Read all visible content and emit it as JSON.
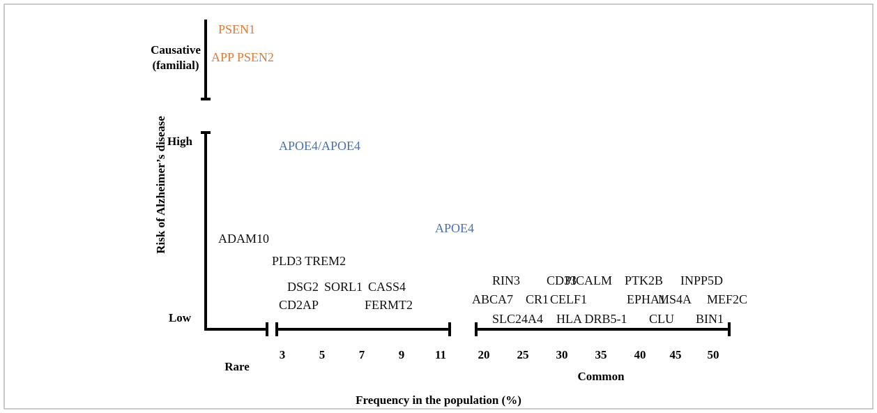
{
  "y_axis": {
    "title": "Risk of Alzheimer’s disease",
    "causative": [
      "Causative",
      "(familial)"
    ],
    "high": "High",
    "low": "Low"
  },
  "causative_genes": [
    "PSEN1",
    "APP PSEN2"
  ],
  "apoe_genes": [
    "APOE4/APOE4",
    "APOE4"
  ],
  "genes": [
    "ADAM10",
    "PLD3 TREM2",
    "DSG2",
    "SORL1",
    "CASS4",
    "CD2AP",
    "FERMT2",
    "RIN3",
    "CD33",
    "PICALM",
    "PTK2B",
    "INPP5D",
    "ABCA7",
    "CR1",
    "CELF1",
    "EPHA1",
    "MS4A",
    "MEF2C",
    "SLC24A4",
    "HLA DRB5-1",
    "CLU",
    "BIN1"
  ],
  "x_axis": {
    "title": "Frequency in the population (%)",
    "rare": "Rare",
    "common": "Common",
    "rare_ticks": [
      3,
      5,
      7,
      9,
      11
    ],
    "common_ticks": [
      20,
      25,
      30,
      35,
      40,
      45,
      50
    ]
  }
}
